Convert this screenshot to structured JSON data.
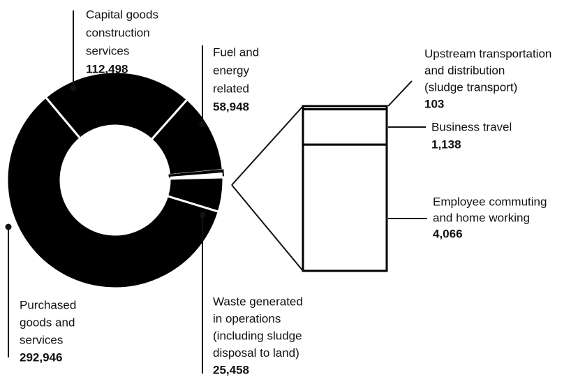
{
  "chart_data": {
    "type": "donut",
    "labels": [
      [
        "Capital goods",
        "construction",
        "services"
      ],
      [
        "Fuel and",
        "energy",
        "related"
      ],
      [
        "Upstream transportation",
        "and distribution",
        "(sludge transport)"
      ],
      [
        "Business travel"
      ],
      [
        "Employee commuting",
        "and home working"
      ],
      [
        "Waste generated",
        "in operations",
        "(including sludge",
        "disposal to land)"
      ],
      [
        "Purchased",
        "goods and",
        "services"
      ]
    ],
    "values": [
      112498,
      58948,
      103,
      1138,
      4066,
      25458,
      292946
    ],
    "value_labels": [
      "112,498",
      "58,948",
      "103",
      "1,138",
      "4,066",
      "25,458",
      "292,946"
    ],
    "color": "#000000"
  }
}
